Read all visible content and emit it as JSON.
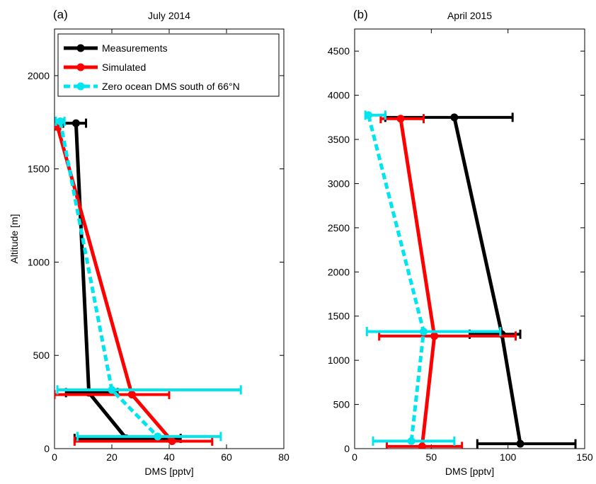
{
  "chart_data": [
    {
      "type": "line",
      "panel_label": "(a)",
      "title": "July 2014",
      "xlabel": "DMS [pptv]",
      "ylabel": "Altitude [m]",
      "xlim": [
        0,
        80
      ],
      "ylim": [
        0,
        2250
      ],
      "xticks": [
        0,
        20,
        40,
        60,
        80
      ],
      "yticks": [
        0,
        500,
        1000,
        1500,
        2000
      ],
      "grid": false,
      "legend": {
        "placement": "top",
        "entries": [
          "Measurements",
          "Simulated",
          "Zero ocean DMS south of 66°N"
        ]
      },
      "series": [
        {
          "name": "Measurements",
          "color": "#000000",
          "dashed": false,
          "points": [
            {
              "x": 7.5,
              "y": 1745,
              "xerr": [
                3,
                11
              ]
            },
            {
              "x": 12,
              "y": 300,
              "xerr": [
                4,
                22
              ]
            },
            {
              "x": 25,
              "y": 55,
              "xerr": [
                7,
                44
              ]
            }
          ]
        },
        {
          "name": "Simulated",
          "color": "#ff0000",
          "dashed": false,
          "points": [
            {
              "x": 1,
              "y": 1730,
              "xerr": [
                0.5,
                2
              ]
            },
            {
              "x": 27,
              "y": 290,
              "xerr": [
                0,
                40
              ]
            },
            {
              "x": 41,
              "y": 40,
              "xerr": [
                7,
                55
              ]
            }
          ]
        },
        {
          "name": "Zero ocean DMS south of 66°N",
          "color": "#00e5ee",
          "dashed": true,
          "points": [
            {
              "x": 2,
              "y": 1755,
              "xerr": [
                0.5,
                3.5
              ]
            },
            {
              "x": 20,
              "y": 315,
              "xerr": [
                1,
                65
              ]
            },
            {
              "x": 36,
              "y": 65,
              "xerr": [
                8,
                58
              ]
            }
          ]
        }
      ]
    },
    {
      "type": "line",
      "panel_label": "(b)",
      "title": "April 2015",
      "xlabel": "DMS [pptv]",
      "ylabel": "",
      "xlim": [
        0,
        150
      ],
      "ylim": [
        0,
        4750
      ],
      "xticks": [
        0,
        50,
        100,
        150
      ],
      "yticks": [
        0,
        500,
        1000,
        1500,
        2000,
        2500,
        3000,
        3500,
        4000,
        4500
      ],
      "grid": false,
      "series": [
        {
          "name": "Measurements",
          "color": "#000000",
          "dashed": false,
          "points": [
            {
              "x": 108,
              "y": 55,
              "xerr": [
                80,
                144
              ]
            },
            {
              "x": 96,
              "y": 1295,
              "xerr": [
                75,
                108
              ]
            },
            {
              "x": 65,
              "y": 3750,
              "xerr": [
                20,
                103
              ]
            }
          ]
        },
        {
          "name": "Simulated",
          "color": "#ff0000",
          "dashed": false,
          "points": [
            {
              "x": 44,
              "y": 25,
              "xerr": [
                21,
                70
              ]
            },
            {
              "x": 52,
              "y": 1275,
              "xerr": [
                16,
                105
              ]
            },
            {
              "x": 30,
              "y": 3735,
              "xerr": [
                17,
                45
              ]
            }
          ]
        },
        {
          "name": "Zero ocean DMS south of 66°N",
          "color": "#00e5ee",
          "dashed": true,
          "points": [
            {
              "x": 37,
              "y": 85,
              "xerr": [
                12,
                65
              ]
            },
            {
              "x": 45,
              "y": 1325,
              "xerr": [
                8,
                95
              ]
            },
            {
              "x": 9,
              "y": 3775,
              "xerr": [
                7,
                20
              ]
            }
          ]
        }
      ]
    }
  ]
}
